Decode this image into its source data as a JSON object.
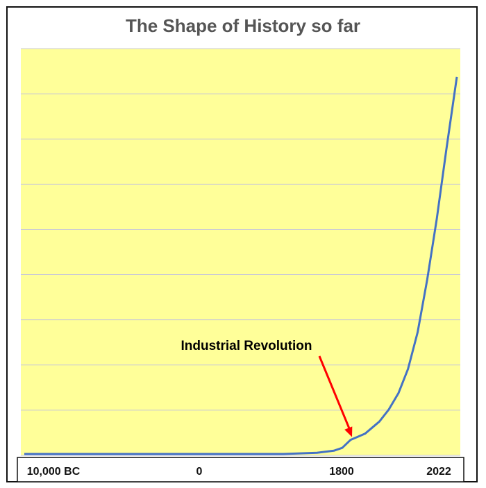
{
  "chart_data": {
    "type": "line",
    "title": "The Shape of History so far",
    "xlabel": "",
    "ylabel": "",
    "x_tick_labels": [
      "10,000 BC",
      "0",
      "1800",
      "2022"
    ],
    "x_tick_years": [
      -10000,
      0,
      1800,
      2022
    ],
    "x_range": [
      -10000,
      2022
    ],
    "y_range": [
      0,
      100
    ],
    "grid": true,
    "series": [
      {
        "values": [
          {
            "x": -10000,
            "y": 0
          },
          {
            "x": -8000,
            "y": 0
          },
          {
            "x": -6000,
            "y": 0
          },
          {
            "x": -4000,
            "y": 0
          },
          {
            "x": -2000,
            "y": 0
          },
          {
            "x": 0,
            "y": 0
          },
          {
            "x": 1000,
            "y": 0
          },
          {
            "x": 1400,
            "y": 0.3
          },
          {
            "x": 1600,
            "y": 0.8
          },
          {
            "x": 1700,
            "y": 1.5
          },
          {
            "x": 1750,
            "y": 2.5
          },
          {
            "x": 1800,
            "y": 3.5
          },
          {
            "x": 1830,
            "y": 5
          },
          {
            "x": 1860,
            "y": 8
          },
          {
            "x": 1880,
            "y": 11
          },
          {
            "x": 1900,
            "y": 15
          },
          {
            "x": 1920,
            "y": 21
          },
          {
            "x": 1940,
            "y": 30
          },
          {
            "x": 1960,
            "y": 43
          },
          {
            "x": 1980,
            "y": 58
          },
          {
            "x": 2000,
            "y": 75
          },
          {
            "x": 2022,
            "y": 93
          }
        ]
      }
    ],
    "annotations": [
      {
        "text": "Industrial Revolution",
        "points_to_x": 1800
      }
    ],
    "colors": {
      "plot_background": "#ffff99",
      "line": "#4472c4",
      "arrow": "#ff0000",
      "gridline": "#c8c8d8",
      "title": "#555555"
    }
  }
}
